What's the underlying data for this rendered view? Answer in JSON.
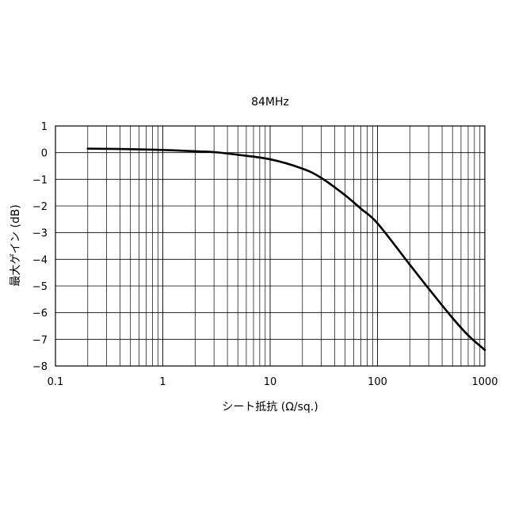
{
  "chart_data": {
    "type": "line",
    "title": "84MHz",
    "xlabel": "シート抵抗 (Ω/sq.)",
    "ylabel": "最大ゲイン (dB)",
    "xscale": "log",
    "xlim": [
      0.1,
      1000
    ],
    "ylim": [
      -8,
      1
    ],
    "x_ticks": [
      0.1,
      1,
      10,
      100,
      1000
    ],
    "x_tick_labels": [
      "0.1",
      "1",
      "10",
      "100",
      "1000"
    ],
    "y_ticks": [
      1,
      0,
      -1,
      -2,
      -3,
      -4,
      -5,
      -6,
      -7,
      -8
    ],
    "y_tick_labels": [
      "1",
      "0",
      "−1",
      "−2",
      "−3",
      "−4",
      "−5",
      "−6",
      "−7",
      "−8"
    ],
    "grid": true,
    "legend": "none",
    "series": [
      {
        "color": "#000000",
        "x": [
          0.2,
          0.5,
          1,
          2,
          3,
          5,
          10,
          20,
          30,
          50,
          70,
          100,
          200,
          300,
          500,
          700,
          1000
        ],
        "y": [
          0.15,
          0.13,
          0.1,
          0.05,
          0.02,
          -0.08,
          -0.25,
          -0.6,
          -0.95,
          -1.6,
          -2.1,
          -2.65,
          -4.2,
          -5.1,
          -6.2,
          -6.85,
          -7.4
        ]
      }
    ]
  }
}
